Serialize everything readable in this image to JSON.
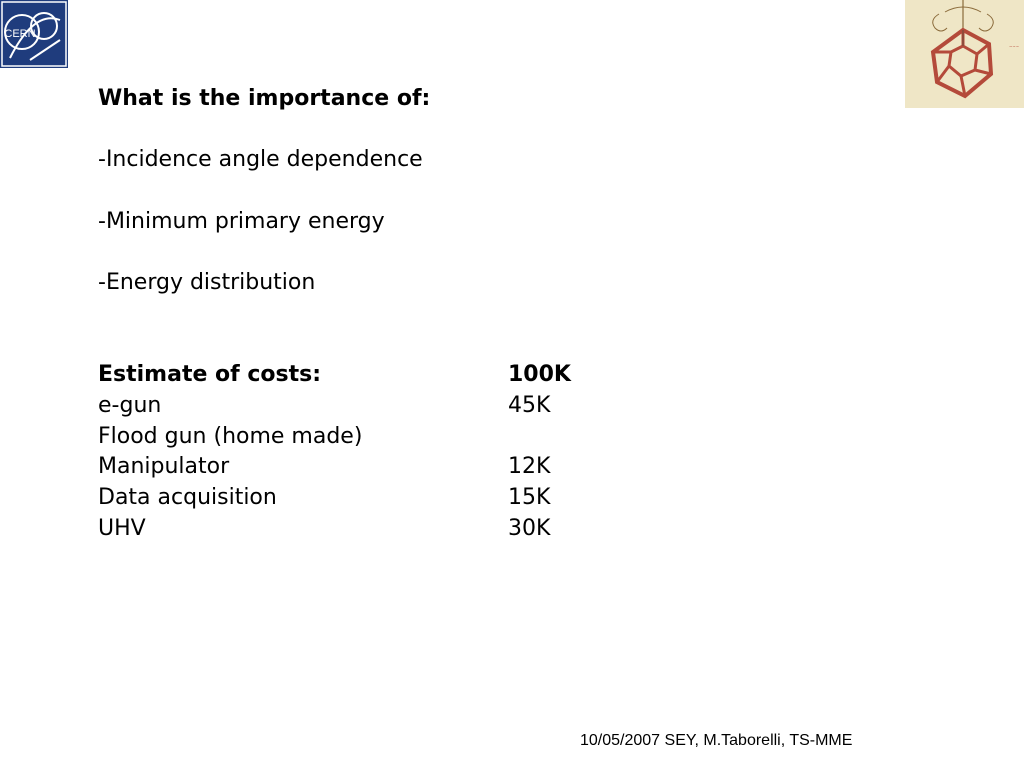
{
  "logo": {
    "text": "CERN",
    "color": "#1f3c7d"
  },
  "importance": {
    "heading": "What is the importance of:",
    "items": [
      "-Incidence angle dependence",
      "-Minimum primary energy",
      "-Energy distribution"
    ]
  },
  "costs": {
    "heading": "Estimate of costs:",
    "total": "100K",
    "rows": [
      {
        "item": "e-gun",
        "value": "45K"
      },
      {
        "item": "Flood gun (home made)",
        "value": ""
      },
      {
        "item": "Manipulator",
        "value": "12K"
      },
      {
        "item": "Data acquisition",
        "value": "15K"
      },
      {
        "item": "UHV",
        "value": "30K"
      }
    ]
  },
  "footer": "10/05/2007 SEY, M.Taborelli, TS-MME"
}
